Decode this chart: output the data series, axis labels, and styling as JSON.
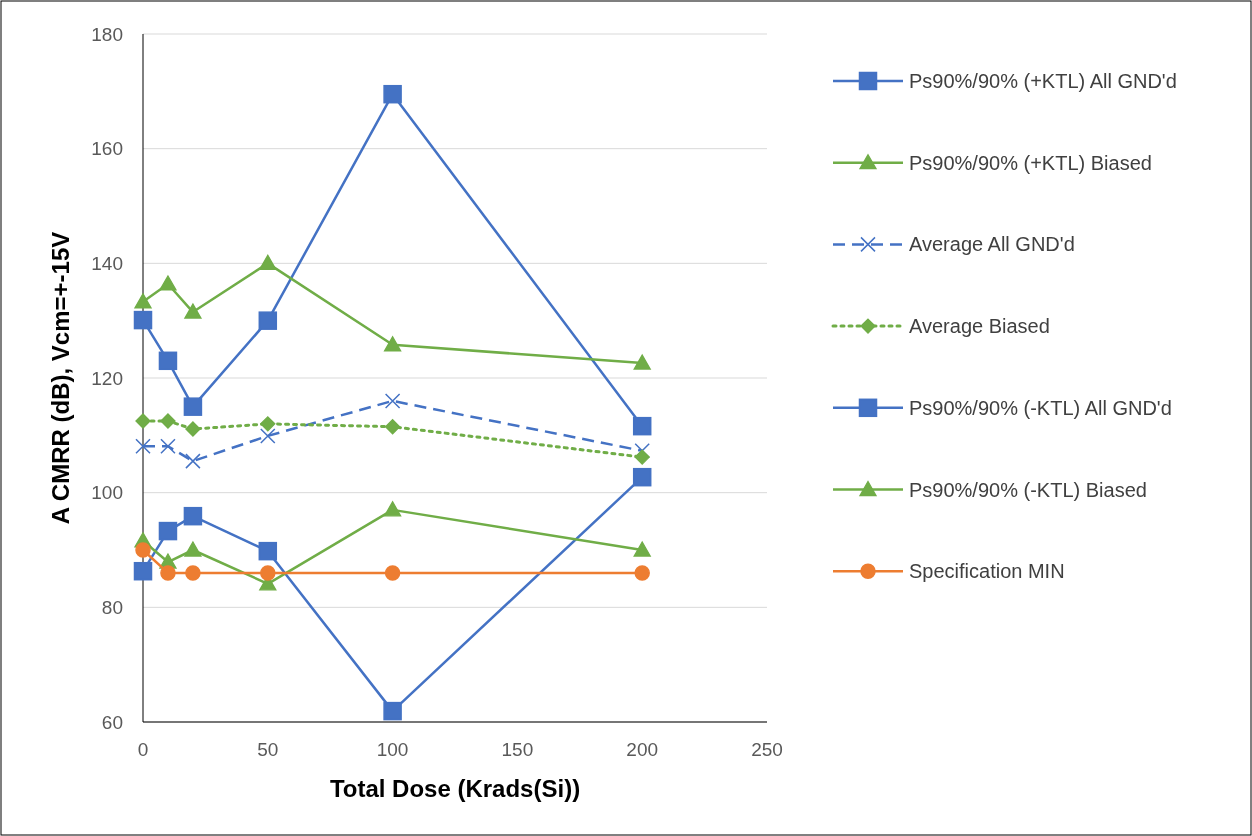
{
  "chart_data": {
    "type": "line",
    "xlabel": "Total Dose (Krads(Si))",
    "ylabel": "A CMRR (dB), Vcm=+-15V",
    "x": [
      0,
      10,
      20,
      50,
      100,
      200
    ],
    "xlim": [
      0,
      250
    ],
    "xticks": [
      0,
      50,
      100,
      150,
      200,
      250
    ],
    "ylim": [
      60,
      180
    ],
    "yticks": [
      60,
      80,
      100,
      120,
      140,
      160,
      180
    ],
    "grid": "y",
    "legend": "right",
    "series": [
      {
        "name": "Ps90%/90% (+KTL) All GND'd",
        "color": "#4472c4",
        "marker": "square",
        "line_style": "solid",
        "values": [
          130.1,
          123,
          115,
          130,
          169.5,
          111.6
        ]
      },
      {
        "name": "Ps90%/90% (+KTL) Biased",
        "color": "#70ad47",
        "marker": "triangle",
        "line_style": "solid",
        "values": [
          133.3,
          136.4,
          131.5,
          140,
          125.8,
          122.6
        ]
      },
      {
        "name": "Average All GND'd",
        "color": "#4472c4",
        "marker": "cross",
        "line_style": "dashed",
        "values": [
          108.1,
          108.1,
          105.5,
          109.9,
          116,
          107.3
        ]
      },
      {
        "name": "Average Biased",
        "color": "#70ad47",
        "marker": "diamond",
        "line_style": "dotted",
        "values": [
          112.5,
          112.5,
          111.1,
          112,
          111.5,
          106.2
        ]
      },
      {
        "name": "Ps90%/90% (-KTL) All GND'd",
        "color": "#4472c4",
        "marker": "square",
        "line_style": "solid",
        "values": [
          86.3,
          93.3,
          95.9,
          89.8,
          61.9,
          102.7
        ]
      },
      {
        "name": "Ps90%/90% (-KTL) Biased",
        "color": "#70ad47",
        "marker": "triangle",
        "line_style": "solid",
        "values": [
          91.6,
          87.9,
          90,
          84.1,
          97,
          90
        ]
      },
      {
        "name": "Specification MIN",
        "color": "#ed7d31",
        "marker": "circle",
        "line_style": "solid",
        "values": [
          90,
          86,
          86,
          86,
          86,
          86
        ]
      }
    ]
  }
}
